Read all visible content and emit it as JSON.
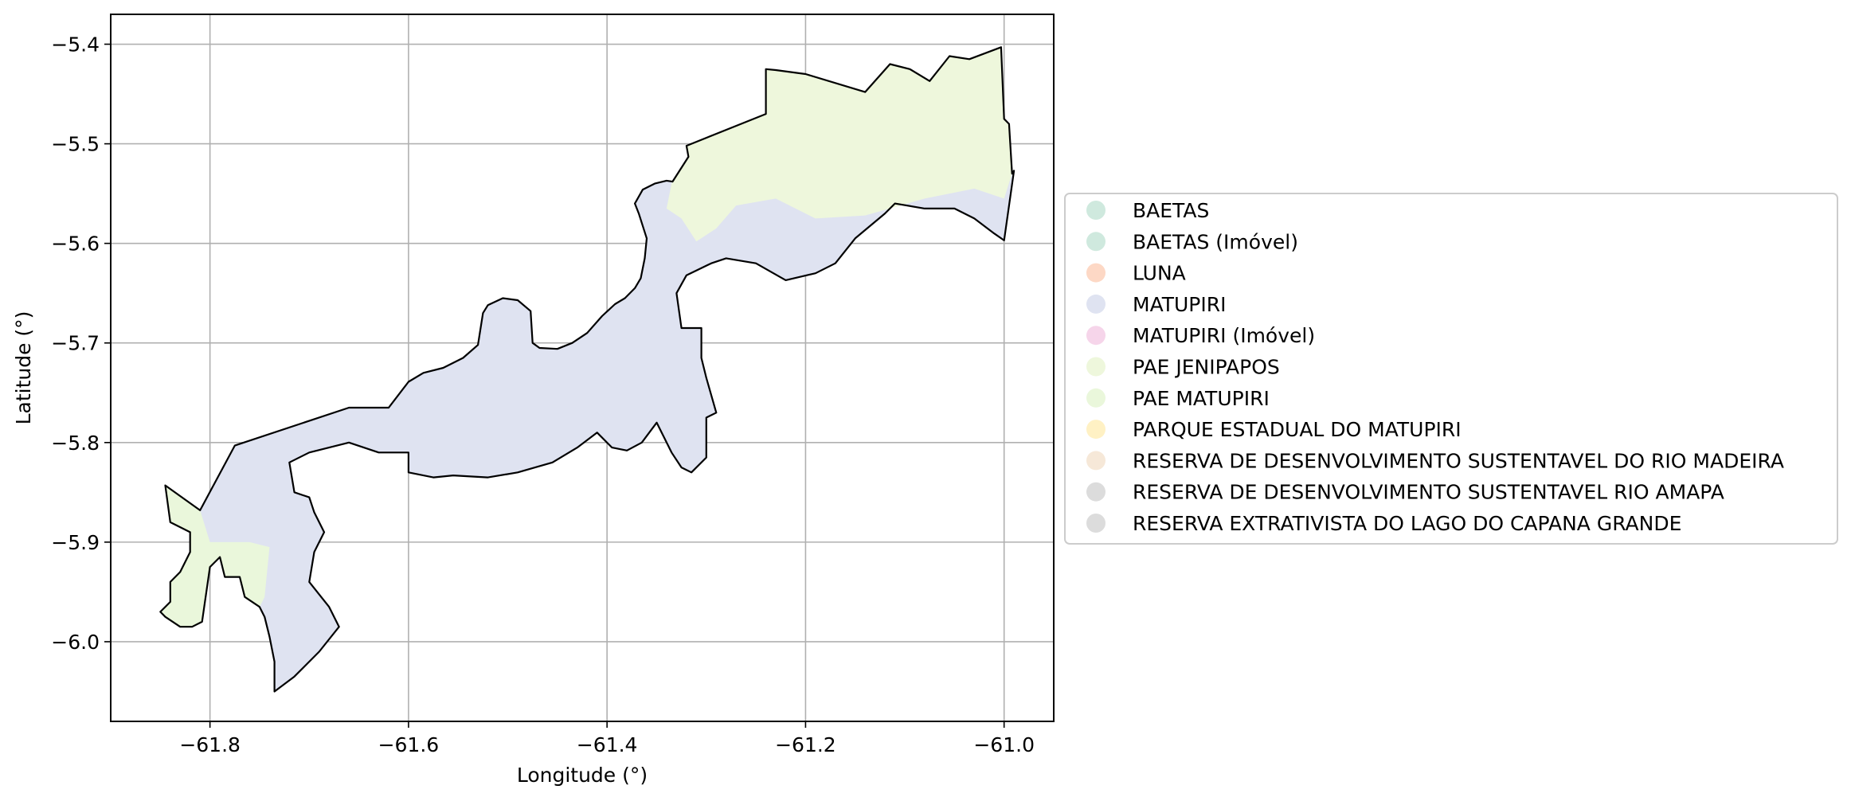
{
  "axes": {
    "xlabel": "Longitude (°)",
    "ylabel": "Latitude (°)",
    "xlim": [
      -61.9,
      -60.95
    ],
    "ylim": [
      -6.08,
      -5.37
    ],
    "xticks": [
      -61.8,
      -61.6,
      -61.4,
      -61.2,
      -61.0
    ],
    "xtick_labels": [
      "−61.8",
      "−61.6",
      "−61.4",
      "−61.2",
      "−61.0"
    ],
    "yticks": [
      -5.4,
      -5.5,
      -5.6,
      -5.7,
      -5.8,
      -5.9,
      -6.0
    ],
    "ytick_labels": [
      "−5.4",
      "−5.5",
      "−5.6",
      "−5.7",
      "−5.8",
      "−5.9",
      "−6.0"
    ],
    "grid": true
  },
  "legend": {
    "placement": "right",
    "entries": [
      {
        "label": "BAETAS",
        "color": "#cfe9de"
      },
      {
        "label": "BAETAS (Imóvel)",
        "color": "#cfe9de"
      },
      {
        "label": "LUNA",
        "color": "#fdd8c5"
      },
      {
        "label": "MATUPIRI",
        "color": "#dfe3f1"
      },
      {
        "label": "MATUPIRI (Imóvel)",
        "color": "#f6d5ea"
      },
      {
        "label": "PAE JENIPAPOS",
        "color": "#eef7dc"
      },
      {
        "label": "PAE MATUPIRI",
        "color": "#eaf7db"
      },
      {
        "label": "PARQUE ESTADUAL DO MATUPIRI",
        "color": "#fff1c4"
      },
      {
        "label": "RESERVA DE DESENVOLVIMENTO SUSTENTAVEL DO RIO MADEIRA",
        "color": "#f6e8d8"
      },
      {
        "label": "RESERVA DE DESENVOLVIMENTO SUSTENTAVEL RIO AMAPA",
        "color": "#dcdcdc"
      },
      {
        "label": "RESERVA EXTRATIVISTA DO LAGO DO CAPANA GRANDE",
        "color": "#dcdcdc"
      }
    ]
  },
  "regions": {
    "boundary": {
      "name": "study-area",
      "stroke": "#000000",
      "coords": [
        [
          -61.845,
          -5.843
        ],
        [
          -61.81,
          -5.868
        ],
        [
          -61.775,
          -5.803
        ],
        [
          -61.66,
          -5.765
        ],
        [
          -61.62,
          -5.765
        ],
        [
          -61.6,
          -5.739
        ],
        [
          -61.585,
          -5.73
        ],
        [
          -61.565,
          -5.725
        ],
        [
          -61.545,
          -5.715
        ],
        [
          -61.53,
          -5.702
        ],
        [
          -61.525,
          -5.67
        ],
        [
          -61.52,
          -5.662
        ],
        [
          -61.505,
          -5.655
        ],
        [
          -61.49,
          -5.657
        ],
        [
          -61.477,
          -5.668
        ],
        [
          -61.475,
          -5.7
        ],
        [
          -61.468,
          -5.705
        ],
        [
          -61.45,
          -5.706
        ],
        [
          -61.435,
          -5.7
        ],
        [
          -61.42,
          -5.69
        ],
        [
          -61.405,
          -5.673
        ],
        [
          -61.392,
          -5.661
        ],
        [
          -61.382,
          -5.655
        ],
        [
          -61.372,
          -5.645
        ],
        [
          -61.366,
          -5.635
        ],
        [
          -61.362,
          -5.615
        ],
        [
          -61.36,
          -5.595
        ],
        [
          -61.368,
          -5.57
        ],
        [
          -61.372,
          -5.56
        ],
        [
          -61.364,
          -5.546
        ],
        [
          -61.352,
          -5.54
        ],
        [
          -61.34,
          -5.537
        ],
        [
          -61.334,
          -5.538
        ],
        [
          -61.318,
          -5.513
        ],
        [
          -61.32,
          -5.502
        ],
        [
          -61.24,
          -5.47
        ],
        [
          -61.24,
          -5.425
        ],
        [
          -61.23,
          -5.426
        ],
        [
          -61.2,
          -5.43
        ],
        [
          -61.14,
          -5.448
        ],
        [
          -61.115,
          -5.42
        ],
        [
          -61.095,
          -5.425
        ],
        [
          -61.075,
          -5.437
        ],
        [
          -61.055,
          -5.412
        ],
        [
          -61.035,
          -5.415
        ],
        [
          -61.003,
          -5.403
        ],
        [
          -61.0,
          -5.475
        ],
        [
          -60.995,
          -5.48
        ],
        [
          -60.992,
          -5.53
        ],
        [
          -60.99,
          -5.527
        ],
        [
          -61.0,
          -5.597
        ],
        [
          -61.01,
          -5.59
        ],
        [
          -61.03,
          -5.575
        ],
        [
          -61.05,
          -5.565
        ],
        [
          -61.08,
          -5.565
        ],
        [
          -61.11,
          -5.56
        ],
        [
          -61.12,
          -5.57
        ],
        [
          -61.15,
          -5.595
        ],
        [
          -61.17,
          -5.62
        ],
        [
          -61.19,
          -5.63
        ],
        [
          -61.22,
          -5.637
        ],
        [
          -61.25,
          -5.62
        ],
        [
          -61.28,
          -5.615
        ],
        [
          -61.295,
          -5.62
        ],
        [
          -61.32,
          -5.632
        ],
        [
          -61.33,
          -5.65
        ],
        [
          -61.325,
          -5.685
        ],
        [
          -61.305,
          -5.685
        ],
        [
          -61.305,
          -5.715
        ],
        [
          -61.3,
          -5.735
        ],
        [
          -61.29,
          -5.77
        ],
        [
          -61.3,
          -5.775
        ],
        [
          -61.3,
          -5.815
        ],
        [
          -61.315,
          -5.83
        ],
        [
          -61.325,
          -5.825
        ],
        [
          -61.335,
          -5.81
        ],
        [
          -61.35,
          -5.78
        ],
        [
          -61.365,
          -5.8
        ],
        [
          -61.38,
          -5.808
        ],
        [
          -61.395,
          -5.805
        ],
        [
          -61.41,
          -5.79
        ],
        [
          -61.43,
          -5.805
        ],
        [
          -61.455,
          -5.82
        ],
        [
          -61.49,
          -5.83
        ],
        [
          -61.52,
          -5.835
        ],
        [
          -61.555,
          -5.833
        ],
        [
          -61.575,
          -5.835
        ],
        [
          -61.6,
          -5.83
        ],
        [
          -61.6,
          -5.81
        ],
        [
          -61.63,
          -5.81
        ],
        [
          -61.645,
          -5.805
        ],
        [
          -61.66,
          -5.8
        ],
        [
          -61.7,
          -5.81
        ],
        [
          -61.72,
          -5.82
        ],
        [
          -61.715,
          -5.85
        ],
        [
          -61.7,
          -5.855
        ],
        [
          -61.695,
          -5.87
        ],
        [
          -61.685,
          -5.89
        ],
        [
          -61.695,
          -5.91
        ],
        [
          -61.7,
          -5.94
        ],
        [
          -61.68,
          -5.965
        ],
        [
          -61.67,
          -5.985
        ],
        [
          -61.69,
          -6.01
        ],
        [
          -61.715,
          -6.035
        ],
        [
          -61.735,
          -6.05
        ],
        [
          -61.735,
          -6.02
        ],
        [
          -61.74,
          -5.995
        ],
        [
          -61.745,
          -5.975
        ],
        [
          -61.75,
          -5.965
        ],
        [
          -61.765,
          -5.955
        ],
        [
          -61.77,
          -5.935
        ],
        [
          -61.785,
          -5.935
        ],
        [
          -61.79,
          -5.915
        ],
        [
          -61.8,
          -5.925
        ],
        [
          -61.808,
          -5.98
        ],
        [
          -61.818,
          -5.985
        ],
        [
          -61.83,
          -5.985
        ],
        [
          -61.845,
          -5.975
        ],
        [
          -61.85,
          -5.97
        ],
        [
          -61.84,
          -5.96
        ],
        [
          -61.84,
          -5.94
        ],
        [
          -61.83,
          -5.93
        ],
        [
          -61.82,
          -5.91
        ],
        [
          -61.82,
          -5.89
        ],
        [
          -61.84,
          -5.88
        ],
        [
          -61.845,
          -5.843
        ]
      ]
    },
    "pae_north": {
      "name": "pae-jenipapos-region",
      "fill": "#eef7dc",
      "coords": [
        [
          -61.34,
          -5.565
        ],
        [
          -61.335,
          -5.54
        ],
        [
          -61.318,
          -5.513
        ],
        [
          -61.32,
          -5.502
        ],
        [
          -61.24,
          -5.47
        ],
        [
          -61.24,
          -5.425
        ],
        [
          -61.2,
          -5.43
        ],
        [
          -61.14,
          -5.448
        ],
        [
          -61.115,
          -5.42
        ],
        [
          -61.095,
          -5.425
        ],
        [
          -61.075,
          -5.437
        ],
        [
          -61.055,
          -5.412
        ],
        [
          -61.035,
          -5.415
        ],
        [
          -61.003,
          -5.403
        ],
        [
          -61.0,
          -5.475
        ],
        [
          -60.995,
          -5.48
        ],
        [
          -60.992,
          -5.53
        ],
        [
          -61.0,
          -5.555
        ],
        [
          -61.03,
          -5.545
        ],
        [
          -61.08,
          -5.555
        ],
        [
          -61.14,
          -5.572
        ],
        [
          -61.19,
          -5.575
        ],
        [
          -61.23,
          -5.555
        ],
        [
          -61.27,
          -5.562
        ],
        [
          -61.29,
          -5.585
        ],
        [
          -61.31,
          -5.598
        ],
        [
          -61.325,
          -5.575
        ]
      ]
    },
    "pae_south": {
      "name": "pae-matupiri-region",
      "fill": "#eaf7db",
      "coords": [
        [
          -61.845,
          -5.843
        ],
        [
          -61.81,
          -5.868
        ],
        [
          -61.8,
          -5.9
        ],
        [
          -61.76,
          -5.9
        ],
        [
          -61.74,
          -5.905
        ],
        [
          -61.745,
          -5.955
        ],
        [
          -61.75,
          -5.965
        ],
        [
          -61.765,
          -5.955
        ],
        [
          -61.77,
          -5.935
        ],
        [
          -61.785,
          -5.935
        ],
        [
          -61.79,
          -5.915
        ],
        [
          -61.8,
          -5.925
        ],
        [
          -61.808,
          -5.98
        ],
        [
          -61.818,
          -5.985
        ],
        [
          -61.83,
          -5.985
        ],
        [
          -61.845,
          -5.975
        ],
        [
          -61.85,
          -5.97
        ],
        [
          -61.84,
          -5.96
        ],
        [
          -61.84,
          -5.94
        ],
        [
          -61.83,
          -5.93
        ],
        [
          -61.82,
          -5.91
        ],
        [
          -61.82,
          -5.89
        ],
        [
          -61.84,
          -5.88
        ]
      ]
    }
  }
}
